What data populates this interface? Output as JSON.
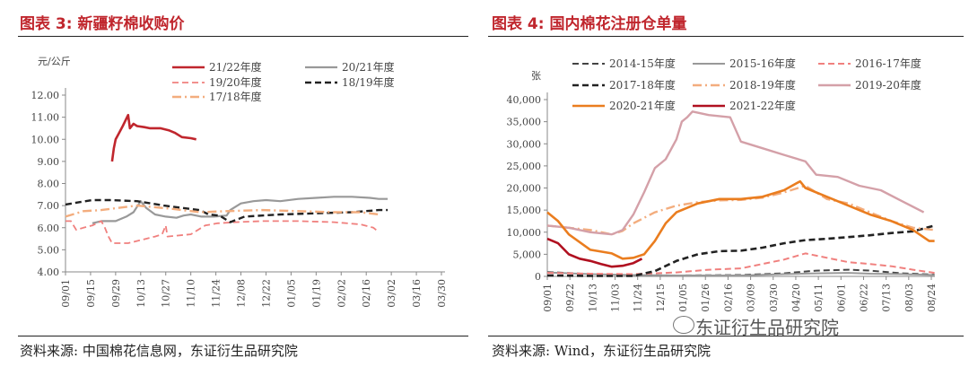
{
  "left": {
    "title": "图表 3: 新疆籽棉收购价",
    "source": "资料来源: 中国棉花信息网，东证衍生品研究院",
    "unit": "元/公斤",
    "chart_data": {
      "type": "line",
      "x_ticks": [
        "09/01",
        "09/15",
        "09/29",
        "10/13",
        "10/27",
        "11/10",
        "11/24",
        "12/08",
        "12/22",
        "01/05",
        "01/19",
        "02/02",
        "02/16",
        "03/02",
        "03/16",
        "03/30"
      ],
      "y_ticks": [
        "4.00",
        "5.00",
        "6.00",
        "7.00",
        "8.00",
        "9.00",
        "10.00",
        "11.00",
        "12.00"
      ],
      "ylim": [
        4,
        12
      ],
      "grid": false,
      "legend_position": "top",
      "series": [
        {
          "name": "21/22年度",
          "color": "#c0262d",
          "dash": "solid",
          "width": 2.6,
          "points": [
            [
              26,
              9.0
            ],
            [
              27,
              9.6
            ],
            [
              28,
              10.0
            ],
            [
              30,
              10.3
            ],
            [
              32,
              10.6
            ],
            [
              35,
              11.1
            ],
            [
              36,
              10.5
            ],
            [
              38,
              10.7
            ],
            [
              40,
              10.6
            ],
            [
              44,
              10.55
            ],
            [
              47,
              10.5
            ],
            [
              53,
              10.5
            ],
            [
              58,
              10.4
            ],
            [
              61,
              10.3
            ],
            [
              65,
              10.1
            ],
            [
              70,
              10.05
            ],
            [
              73,
              10.0
            ]
          ]
        },
        {
          "name": "20/21年度",
          "color": "#999999",
          "dash": "solid",
          "width": 2.2,
          "points": [
            [
              15,
              6.2
            ],
            [
              20,
              6.3
            ],
            [
              28,
              6.3
            ],
            [
              34,
              6.5
            ],
            [
              38,
              6.7
            ],
            [
              42,
              7.2
            ],
            [
              45,
              6.9
            ],
            [
              50,
              6.6
            ],
            [
              56,
              6.5
            ],
            [
              62,
              6.45
            ],
            [
              66,
              6.55
            ],
            [
              70,
              6.6
            ],
            [
              76,
              6.5
            ],
            [
              83,
              6.5
            ],
            [
              90,
              6.55
            ],
            [
              92,
              6.8
            ],
            [
              98,
              7.1
            ],
            [
              105,
              7.2
            ],
            [
              112,
              7.25
            ],
            [
              120,
              7.2
            ],
            [
              130,
              7.3
            ],
            [
              140,
              7.35
            ],
            [
              150,
              7.4
            ],
            [
              160,
              7.4
            ],
            [
              170,
              7.35
            ],
            [
              175,
              7.3
            ],
            [
              180,
              7.3
            ]
          ]
        },
        {
          "name": "19/20年度",
          "color": "#f0807e",
          "dash": "dashed",
          "width": 1.8,
          "points": [
            [
              0,
              6.3
            ],
            [
              3,
              6.3
            ],
            [
              6,
              5.9
            ],
            [
              10,
              6.0
            ],
            [
              15,
              6.1
            ],
            [
              20,
              6.3
            ],
            [
              22,
              6.0
            ],
            [
              24,
              5.6
            ],
            [
              26,
              5.3
            ],
            [
              35,
              5.3
            ],
            [
              45,
              5.5
            ],
            [
              50,
              5.6
            ],
            [
              54,
              5.7
            ],
            [
              56,
              6.1
            ],
            [
              57,
              5.6
            ],
            [
              70,
              5.7
            ],
            [
              78,
              6.1
            ],
            [
              85,
              6.2
            ],
            [
              95,
              6.25
            ],
            [
              110,
              6.3
            ],
            [
              130,
              6.3
            ],
            [
              150,
              6.25
            ],
            [
              165,
              6.15
            ],
            [
              172,
              6.0
            ],
            [
              175,
              5.8
            ]
          ]
        },
        {
          "name": "18/19年度",
          "color": "#222222",
          "dash": "dashed",
          "width": 2.4,
          "points": [
            [
              0,
              7.05
            ],
            [
              15,
              7.25
            ],
            [
              25,
              7.25
            ],
            [
              40,
              7.2
            ],
            [
              55,
              7.0
            ],
            [
              65,
              6.9
            ],
            [
              75,
              6.8
            ],
            [
              80,
              6.6
            ],
            [
              86,
              6.55
            ],
            [
              92,
              6.25
            ],
            [
              100,
              6.5
            ],
            [
              110,
              6.55
            ],
            [
              120,
              6.6
            ],
            [
              140,
              6.65
            ],
            [
              160,
              6.7
            ],
            [
              175,
              6.8
            ],
            [
              180,
              6.8
            ]
          ]
        },
        {
          "name": "17/18年度",
          "color": "#f3ad7e",
          "dash": "dashdot",
          "width": 2.4,
          "points": [
            [
              0,
              6.5
            ],
            [
              10,
              6.75
            ],
            [
              20,
              6.8
            ],
            [
              40,
              7.0
            ],
            [
              60,
              6.85
            ],
            [
              75,
              6.7
            ],
            [
              90,
              6.75
            ],
            [
              110,
              6.8
            ],
            [
              130,
              6.75
            ],
            [
              150,
              6.7
            ],
            [
              165,
              6.7
            ],
            [
              175,
              6.6
            ]
          ]
        }
      ]
    }
  },
  "right": {
    "title": "图表 4: 国内棉花注册仓单量",
    "source": "资料来源: Wind，东证衍生品研究院",
    "unit": "张",
    "chart_data": {
      "type": "line",
      "x_ticks": [
        "09/01",
        "09/22",
        "10/13",
        "11/03",
        "11/24",
        "12/15",
        "01/05",
        "01/26",
        "02/16",
        "03/09",
        "03/30",
        "04/20",
        "05/11",
        "06/01",
        "06/22",
        "07/13",
        "08/03",
        "08/24"
      ],
      "y_ticks": [
        "0",
        "5,000",
        "10,000",
        "15,000",
        "20,000",
        "25,000",
        "30,000",
        "35,000",
        "40,000"
      ],
      "ylim": [
        0,
        40000
      ],
      "grid": false,
      "legend_position": "top",
      "series": [
        {
          "name": "2014-15年度",
          "color": "#444444",
          "dash": "dashed",
          "width": 2,
          "points": [
            [
              0,
              1000
            ],
            [
              40,
              500
            ],
            [
              80,
              300
            ],
            [
              120,
              200
            ],
            [
              180,
              300
            ],
            [
              220,
              700
            ],
            [
              250,
              1300
            ],
            [
              280,
              1500
            ],
            [
              300,
              1300
            ],
            [
              330,
              700
            ],
            [
              360,
              400
            ]
          ]
        },
        {
          "name": "2015-16年度",
          "color": "#999999",
          "dash": "solid",
          "width": 2,
          "points": [
            [
              0,
              900
            ],
            [
              40,
              500
            ],
            [
              80,
              300
            ],
            [
              120,
              200
            ],
            [
              180,
              200
            ],
            [
              220,
              500
            ],
            [
              250,
              700
            ],
            [
              280,
              800
            ],
            [
              300,
              600
            ],
            [
              330,
              500
            ],
            [
              360,
              300
            ]
          ]
        },
        {
          "name": "2016-17年度",
          "color": "#f0807e",
          "dash": "dashed",
          "width": 2,
          "points": [
            [
              0,
              800
            ],
            [
              40,
              600
            ],
            [
              80,
              500
            ],
            [
              120,
              900
            ],
            [
              150,
              1500
            ],
            [
              180,
              1800
            ],
            [
              200,
              2800
            ],
            [
              220,
              3800
            ],
            [
              240,
              5200
            ],
            [
              260,
              4200
            ],
            [
              280,
              3200
            ],
            [
              300,
              2800
            ],
            [
              320,
              2300
            ],
            [
              340,
              1500
            ],
            [
              360,
              800
            ]
          ]
        },
        {
          "name": "2017-18年度",
          "color": "#222222",
          "dash": "dashed",
          "width": 2.6,
          "points": [
            [
              0,
              200
            ],
            [
              40,
              100
            ],
            [
              80,
              100
            ],
            [
              100,
              1200
            ],
            [
              120,
              3500
            ],
            [
              140,
              5000
            ],
            [
              160,
              5700
            ],
            [
              180,
              5800
            ],
            [
              200,
              6500
            ],
            [
              220,
              7500
            ],
            [
              240,
              8200
            ],
            [
              260,
              8500
            ],
            [
              280,
              8900
            ],
            [
              300,
              9300
            ],
            [
              320,
              9800
            ],
            [
              340,
              10200
            ],
            [
              360,
              11500
            ]
          ]
        },
        {
          "name": "2018-19年度",
          "color": "#f3ad7e",
          "dash": "dashdot",
          "width": 2.4,
          "points": [
            [
              0,
              11500
            ],
            [
              20,
              11000
            ],
            [
              40,
              10500
            ],
            [
              60,
              9500
            ],
            [
              70,
              10300
            ],
            [
              80,
              12000
            ],
            [
              100,
              14500
            ],
            [
              120,
              16000
            ],
            [
              140,
              16800
            ],
            [
              160,
              17200
            ],
            [
              180,
              17300
            ],
            [
              200,
              17800
            ],
            [
              220,
              19000
            ],
            [
              240,
              20500
            ],
            [
              260,
              17500
            ],
            [
              280,
              16500
            ],
            [
              300,
              14500
            ],
            [
              320,
              12500
            ],
            [
              340,
              11000
            ],
            [
              360,
              10500
            ]
          ]
        },
        {
          "name": "2019-20年度",
          "color": "#d4a0a8",
          "dash": "solid",
          "width": 2.4,
          "points": [
            [
              0,
              11500
            ],
            [
              20,
              11000
            ],
            [
              40,
              10000
            ],
            [
              60,
              9500
            ],
            [
              70,
              10500
            ],
            [
              80,
              14000
            ],
            [
              90,
              19000
            ],
            [
              100,
              24500
            ],
            [
              110,
              26500
            ],
            [
              120,
              31000
            ],
            [
              125,
              35000
            ],
            [
              130,
              36000
            ],
            [
              135,
              37300
            ],
            [
              150,
              36500
            ],
            [
              170,
              36000
            ],
            [
              180,
              30500
            ],
            [
              200,
              29000
            ],
            [
              220,
              27500
            ],
            [
              240,
              26000
            ],
            [
              250,
              23000
            ],
            [
              270,
              22500
            ],
            [
              290,
              20500
            ],
            [
              310,
              19500
            ],
            [
              330,
              17000
            ],
            [
              350,
              14500
            ]
          ]
        },
        {
          "name": "2020-21年度",
          "color": "#ea7d1f",
          "dash": "solid",
          "width": 2.6,
          "points": [
            [
              0,
              14500
            ],
            [
              10,
              12500
            ],
            [
              20,
              9500
            ],
            [
              40,
              6000
            ],
            [
              60,
              5200
            ],
            [
              70,
              4000
            ],
            [
              80,
              4200
            ],
            [
              90,
              5000
            ],
            [
              100,
              8000
            ],
            [
              110,
              12000
            ],
            [
              120,
              14500
            ],
            [
              140,
              16500
            ],
            [
              160,
              17500
            ],
            [
              180,
              17500
            ],
            [
              200,
              18000
            ],
            [
              220,
              19500
            ],
            [
              235,
              21500
            ],
            [
              240,
              20000
            ],
            [
              260,
              18000
            ],
            [
              280,
              16000
            ],
            [
              300,
              14000
            ],
            [
              320,
              12500
            ],
            [
              340,
              10500
            ],
            [
              355,
              8000
            ],
            [
              360,
              8000
            ]
          ]
        },
        {
          "name": "2021-22年度",
          "color": "#b01020",
          "dash": "solid",
          "width": 2.6,
          "points": [
            [
              0,
              8500
            ],
            [
              10,
              7500
            ],
            [
              20,
              5000
            ],
            [
              30,
              4000
            ],
            [
              40,
              3500
            ],
            [
              50,
              2800
            ],
            [
              60,
              2200
            ],
            [
              70,
              2400
            ],
            [
              80,
              3000
            ],
            [
              88,
              4000
            ]
          ]
        }
      ]
    }
  },
  "watermark": "东证衍生品研究院"
}
